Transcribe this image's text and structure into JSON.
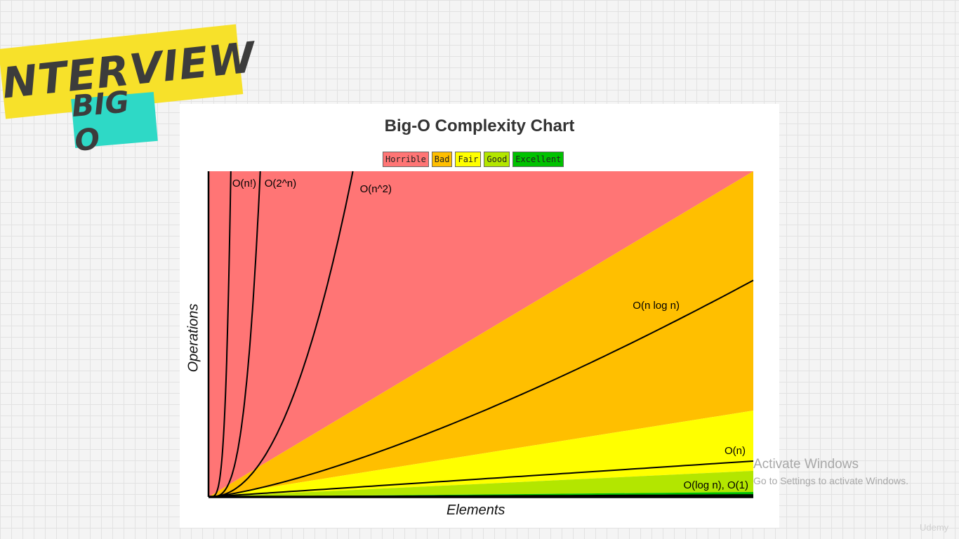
{
  "banner": {
    "top": "INTERVIEW",
    "bottom": "BIG O"
  },
  "chart_data": {
    "type": "area",
    "title": "Big-O Complexity Chart",
    "xlabel": "Elements",
    "ylabel": "Operations",
    "grid": false,
    "legend_position": "top-center",
    "legend": [
      {
        "label": "Horrible",
        "color": "#ff7575"
      },
      {
        "label": "Bad",
        "color": "#ffbf00"
      },
      {
        "label": "Fair",
        "color": "#ffff00"
      },
      {
        "label": "Good",
        "color": "#b3e600"
      },
      {
        "label": "Excellent",
        "color": "#00c200"
      }
    ],
    "xlim": [
      0,
      100
    ],
    "ylim": [
      0,
      100
    ],
    "regions": [
      {
        "name": "Horrible",
        "color": "#ff7575",
        "boundary": [
          [
            0,
            0
          ],
          [
            0,
            100
          ],
          [
            100,
            100
          ],
          [
            100,
            100
          ]
        ]
      },
      {
        "name": "Bad",
        "color": "#ffbf00",
        "boundary": [
          [
            0,
            0
          ],
          [
            100,
            100
          ],
          [
            100,
            26.5
          ]
        ]
      },
      {
        "name": "Fair",
        "color": "#ffff00",
        "boundary": [
          [
            0,
            0
          ],
          [
            100,
            26.5
          ],
          [
            100,
            8
          ]
        ]
      },
      {
        "name": "Good",
        "color": "#b3e600",
        "boundary": [
          [
            0,
            0
          ],
          [
            100,
            8
          ],
          [
            100,
            1.5
          ]
        ]
      },
      {
        "name": "Excellent",
        "color": "#00c200",
        "boundary": [
          [
            0,
            0
          ],
          [
            100,
            1.5
          ],
          [
            100,
            0
          ]
        ]
      }
    ],
    "series": [
      {
        "name": "O(n!)",
        "curve": "factorial",
        "at_ymax_x": 4.1
      },
      {
        "name": "O(2^n)",
        "curve": "exponential",
        "at_ymax_x": 9.5
      },
      {
        "name": "O(n^2)",
        "curve": "quadratic",
        "at_ymax_x": 26.5
      },
      {
        "name": "O(n log n)",
        "curve": "nlogn",
        "at_xmax_y": 66.5
      },
      {
        "name": "O(n)",
        "curve": "linear",
        "at_xmax_y": 11
      },
      {
        "name": "O(log n), O(1)",
        "curve": "constant",
        "at_xmax_y": 0.6
      }
    ]
  },
  "overlay": {
    "activate_title": "Activate Windows",
    "activate_sub": "Go to Settings to activate Windows.",
    "watermark": "Udemy"
  }
}
